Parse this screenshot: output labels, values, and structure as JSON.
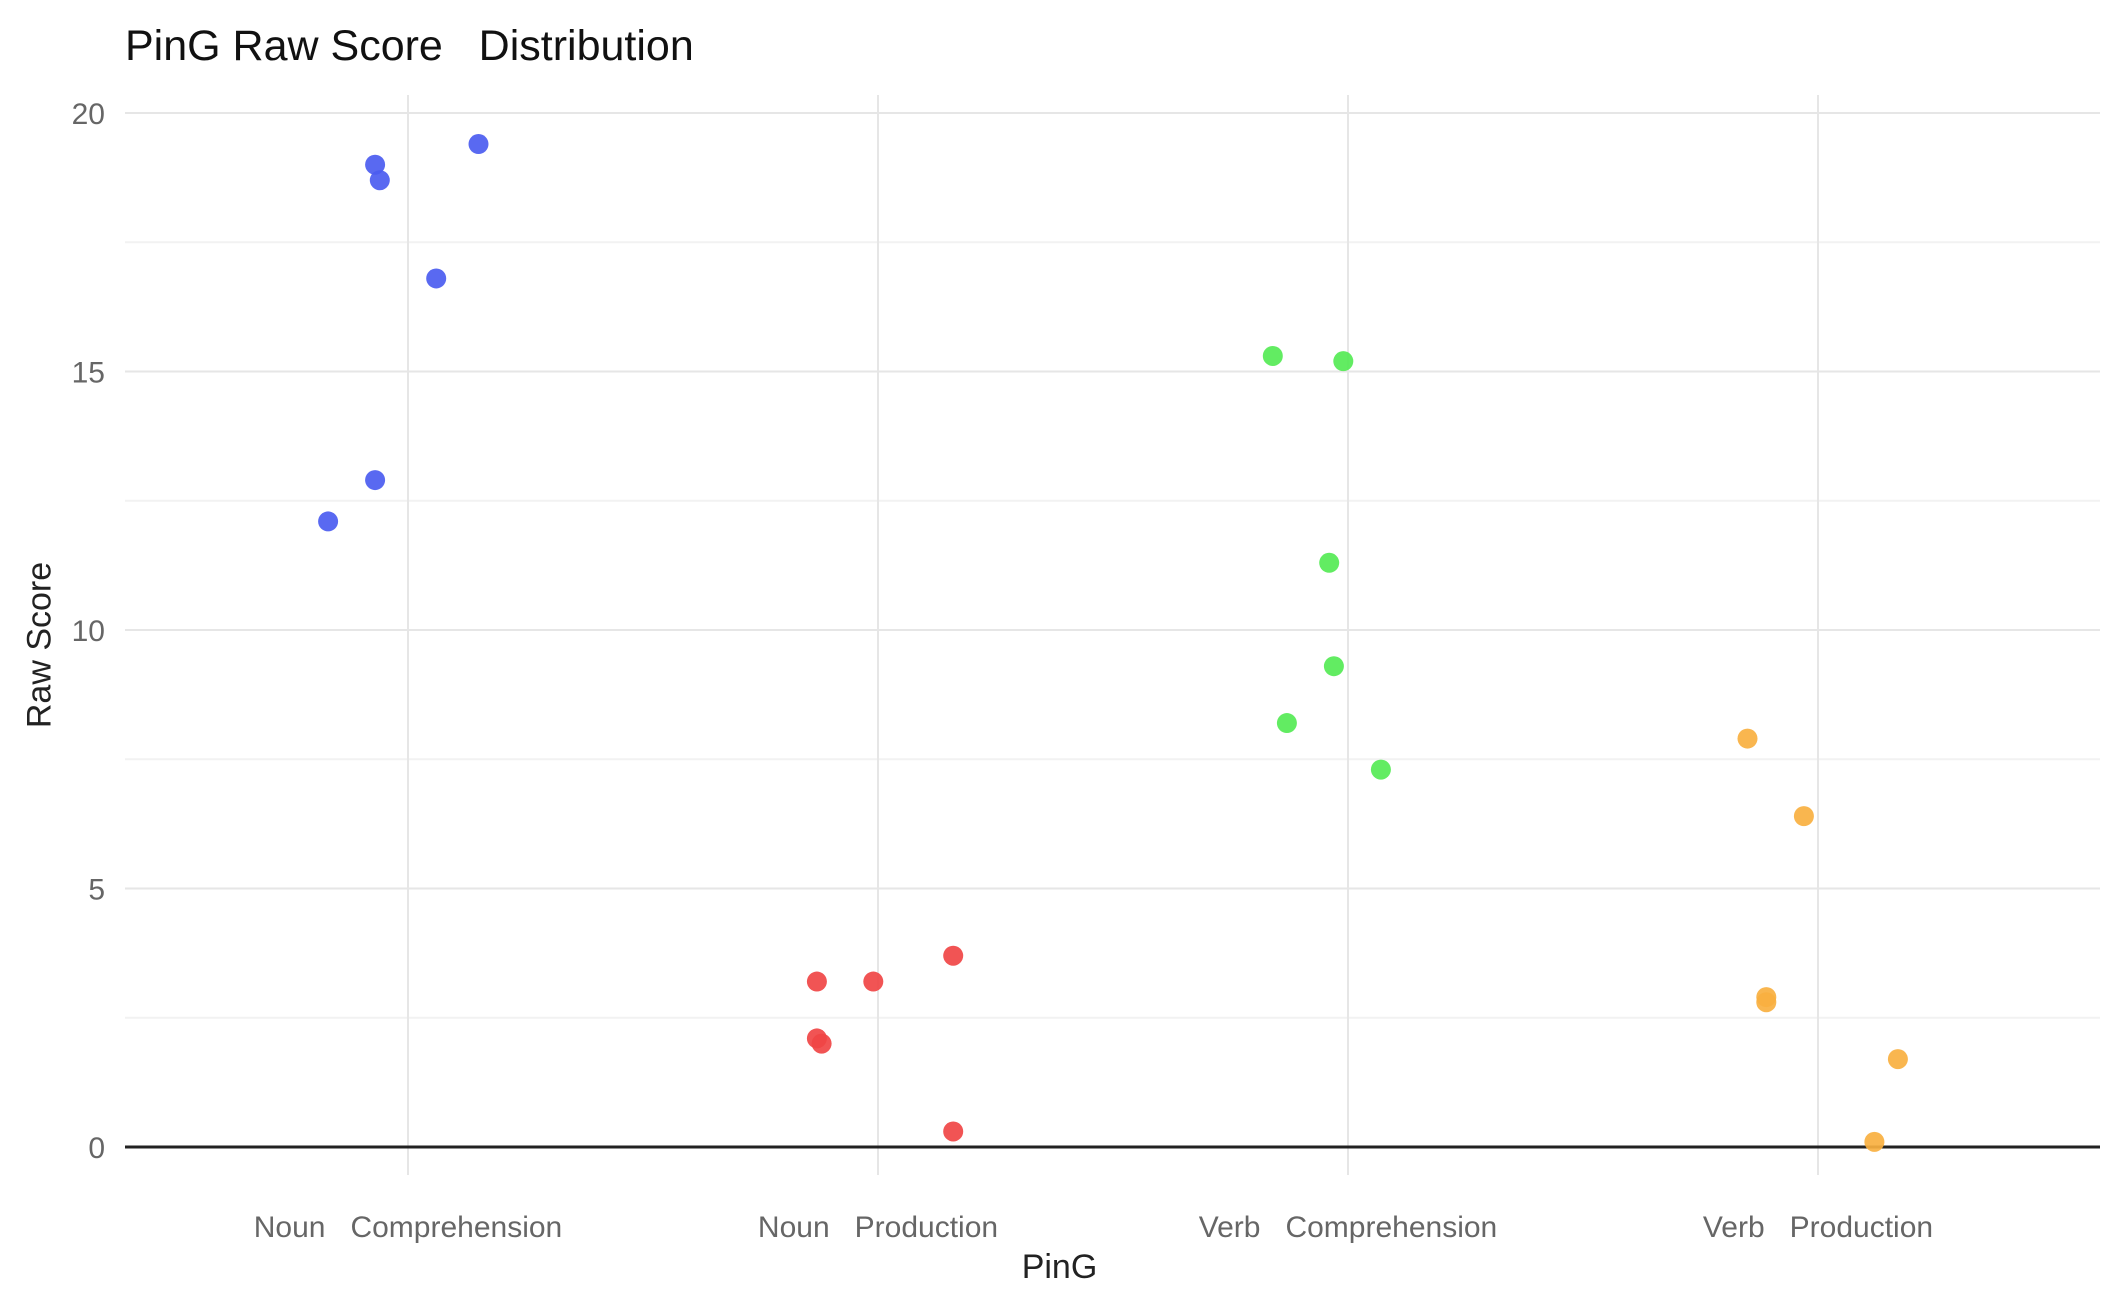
{
  "chart_data": {
    "type": "scatter",
    "title": "PinG Raw Score   Distribution",
    "xlabel": "PinG",
    "ylabel": "Raw Score",
    "categories": [
      "Noun   Comprehension",
      "Noun   Production",
      "Verb   Comprehension",
      "Verb   Production"
    ],
    "ylim": [
      0,
      20
    ],
    "yticks": [
      0,
      5,
      10,
      15,
      20
    ],
    "grid": true,
    "legend": "none",
    "series": [
      {
        "category": "Noun   Comprehension",
        "color": "#4b5cf0",
        "points": [
          {
            "offset": -0.17,
            "y": 12.1
          },
          {
            "offset": -0.07,
            "y": 12.9
          },
          {
            "offset": -0.07,
            "y": 19.0
          },
          {
            "offset": -0.06,
            "y": 18.7
          },
          {
            "offset": 0.06,
            "y": 16.8
          },
          {
            "offset": 0.15,
            "y": 19.4
          }
        ]
      },
      {
        "category": "Noun   Production",
        "color": "#f04545",
        "points": [
          {
            "offset": -0.13,
            "y": 3.2
          },
          {
            "offset": -0.13,
            "y": 2.1
          },
          {
            "offset": -0.12,
            "y": 2.0
          },
          {
            "offset": -0.01,
            "y": 3.2
          },
          {
            "offset": 0.16,
            "y": 3.7
          },
          {
            "offset": 0.16,
            "y": 0.3
          }
        ]
      },
      {
        "category": "Verb   Comprehension",
        "color": "#55ea55",
        "points": [
          {
            "offset": -0.16,
            "y": 15.3
          },
          {
            "offset": -0.13,
            "y": 8.2
          },
          {
            "offset": -0.04,
            "y": 11.3
          },
          {
            "offset": -0.03,
            "y": 9.3
          },
          {
            "offset": -0.01,
            "y": 15.2
          },
          {
            "offset": 0.07,
            "y": 7.3
          }
        ]
      },
      {
        "category": "Verb   Production",
        "color": "#f8b040",
        "points": [
          {
            "offset": -0.15,
            "y": 7.9
          },
          {
            "offset": -0.11,
            "y": 2.8
          },
          {
            "offset": -0.11,
            "y": 2.9
          },
          {
            "offset": -0.03,
            "y": 6.4
          },
          {
            "offset": 0.12,
            "y": 0.1
          },
          {
            "offset": 0.17,
            "y": 1.7
          }
        ]
      }
    ]
  }
}
